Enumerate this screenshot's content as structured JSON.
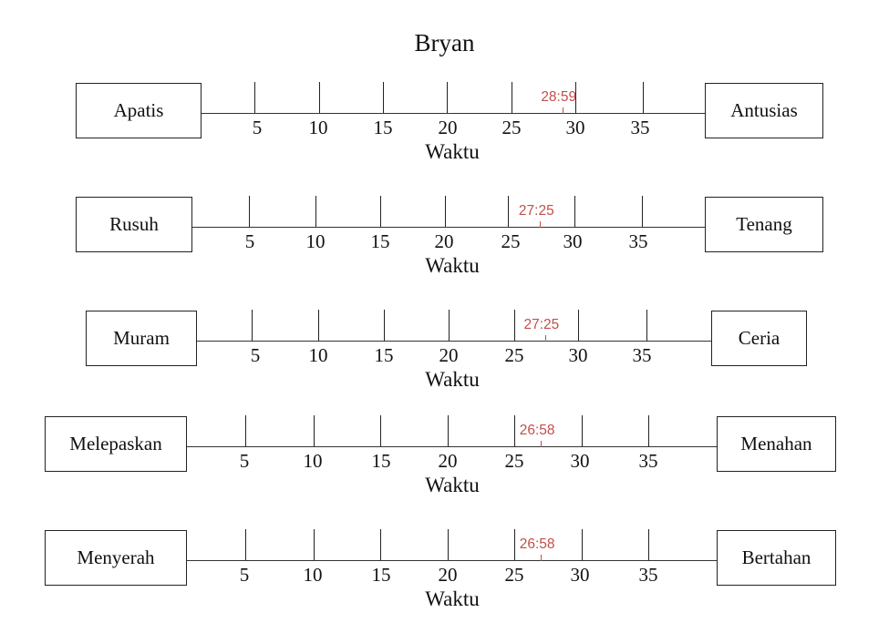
{
  "title": "Bryan",
  "chart_data": {
    "type": "diagram",
    "tick_labels": [
      "5",
      "10",
      "15",
      "20",
      "25",
      "30",
      "35"
    ],
    "rows": [
      {
        "left_label": "Apatis",
        "right_label": "Antusias",
        "marker": "28:59",
        "marker_minutes": 28.98,
        "xlabel": "Waktu"
      },
      {
        "left_label": "Rusuh",
        "right_label": "Tenang",
        "marker": "27:25",
        "marker_minutes": 27.42,
        "xlabel": "Waktu"
      },
      {
        "left_label": "Muram",
        "right_label": "Ceria",
        "marker": "27:25",
        "marker_minutes": 27.42,
        "xlabel": "Waktu"
      },
      {
        "left_label": "Melepaskan",
        "right_label": "Menahan",
        "marker": "26:58",
        "marker_minutes": 26.97,
        "xlabel": "Waktu"
      },
      {
        "left_label": "Menyerah",
        "right_label": "Bertahan",
        "marker": "26:58",
        "marker_minutes": 26.97,
        "xlabel": "Waktu"
      }
    ]
  }
}
